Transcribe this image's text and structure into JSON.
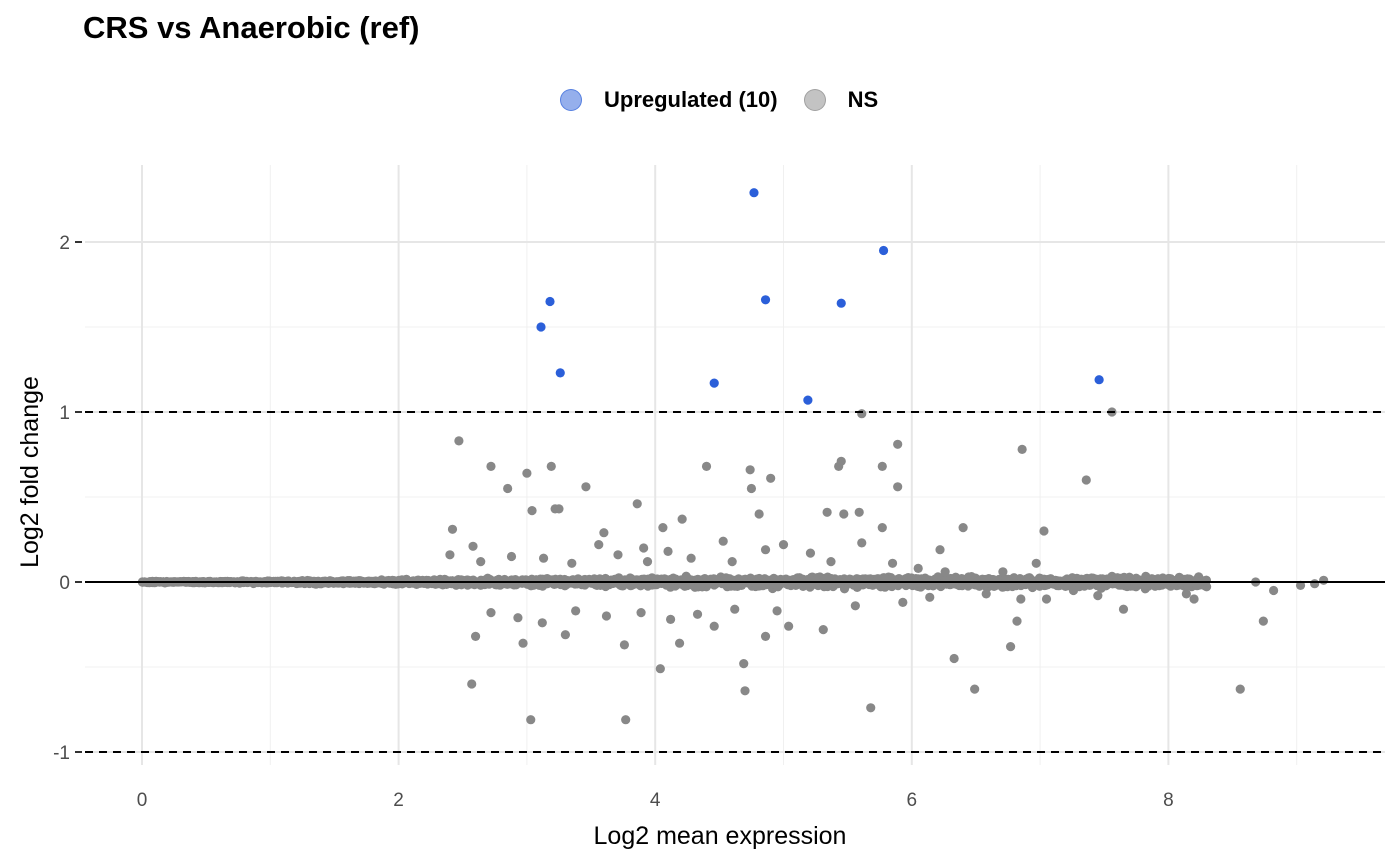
{
  "title": "CRS vs Anaerobic (ref)",
  "legend": [
    {
      "label": "Upregulated (10)",
      "color": "#2b5fd9",
      "alpha": 0.5
    },
    {
      "label": "NS",
      "color": "#888888",
      "alpha": 0.5
    }
  ],
  "chart_data": {
    "type": "scatter",
    "title": "CRS vs Anaerobic (ref)",
    "xlabel": "Log2 mean expression",
    "ylabel": "Log2 fold change",
    "xlim": [
      -0.45,
      9.55
    ],
    "ylim": [
      -1.1,
      2.45
    ],
    "x_ticks": [
      0,
      2,
      4,
      6,
      8
    ],
    "y_ticks": [
      -1,
      0,
      1,
      2
    ],
    "x_tick_labels": [
      "0",
      "2",
      "4",
      "6",
      "8"
    ],
    "y_tick_labels": [
      "-1",
      "0",
      "1",
      "2"
    ],
    "grid": true,
    "legend_position": "top",
    "reference_lines": {
      "solid": [
        0
      ],
      "dashed": [
        -1,
        1
      ]
    },
    "series": [
      {
        "name": "Upregulated (10)",
        "color": "#2b5fd9",
        "points": [
          [
            4.77,
            2.29
          ],
          [
            5.78,
            1.95
          ],
          [
            4.86,
            1.66
          ],
          [
            3.18,
            1.65
          ],
          [
            5.45,
            1.64
          ],
          [
            3.11,
            1.5
          ],
          [
            7.46,
            1.19
          ],
          [
            4.46,
            1.17
          ],
          [
            5.19,
            1.07
          ],
          [
            3.26,
            1.23
          ]
        ]
      },
      {
        "name": "NS",
        "color": "#888888",
        "points": [
          [
            5.61,
            0.99
          ],
          [
            7.56,
            1.0
          ],
          [
            2.47,
            0.83
          ],
          [
            5.89,
            0.81
          ],
          [
            6.86,
            0.78
          ],
          [
            2.72,
            0.68
          ],
          [
            3.19,
            0.68
          ],
          [
            4.4,
            0.68
          ],
          [
            5.45,
            0.71
          ],
          [
            5.77,
            0.68
          ],
          [
            5.43,
            0.68
          ],
          [
            4.74,
            0.66
          ],
          [
            3.0,
            0.64
          ],
          [
            4.9,
            0.61
          ],
          [
            7.36,
            0.6
          ],
          [
            2.85,
            0.55
          ],
          [
            3.46,
            0.56
          ],
          [
            4.75,
            0.55
          ],
          [
            5.89,
            0.56
          ],
          [
            3.86,
            0.46
          ],
          [
            3.22,
            0.43
          ],
          [
            3.25,
            0.43
          ],
          [
            3.04,
            0.42
          ],
          [
            5.34,
            0.41
          ],
          [
            5.47,
            0.4
          ],
          [
            5.59,
            0.41
          ],
          [
            4.81,
            0.4
          ],
          [
            4.21,
            0.37
          ],
          [
            4.06,
            0.32
          ],
          [
            5.77,
            0.32
          ],
          [
            2.42,
            0.31
          ],
          [
            7.03,
            0.3
          ],
          [
            6.4,
            0.32
          ],
          [
            3.6,
            0.29
          ],
          [
            4.53,
            0.24
          ],
          [
            5.0,
            0.22
          ],
          [
            5.61,
            0.23
          ],
          [
            3.56,
            0.22
          ],
          [
            6.22,
            0.19
          ],
          [
            2.58,
            0.21
          ],
          [
            3.91,
            0.2
          ],
          [
            4.1,
            0.18
          ],
          [
            4.86,
            0.19
          ],
          [
            5.21,
            0.17
          ],
          [
            6.71,
            0.06
          ],
          [
            6.97,
            0.11
          ],
          [
            2.6,
            -0.32
          ],
          [
            2.97,
            -0.36
          ],
          [
            3.3,
            -0.31
          ],
          [
            3.76,
            -0.37
          ],
          [
            4.04,
            -0.51
          ],
          [
            4.19,
            -0.36
          ],
          [
            4.46,
            -0.26
          ],
          [
            4.86,
            -0.32
          ],
          [
            5.04,
            -0.26
          ],
          [
            5.31,
            -0.28
          ],
          [
            4.69,
            -0.48
          ],
          [
            4.7,
            -0.64
          ],
          [
            5.68,
            -0.74
          ],
          [
            6.33,
            -0.45
          ],
          [
            6.49,
            -0.63
          ],
          [
            6.77,
            -0.38
          ],
          [
            6.82,
            -0.23
          ],
          [
            2.57,
            -0.6
          ],
          [
            3.03,
            -0.81
          ],
          [
            3.77,
            -0.81
          ],
          [
            8.56,
            -0.63
          ],
          [
            8.74,
            -0.23
          ],
          [
            8.82,
            -0.05
          ],
          [
            8.68,
            0.0
          ],
          [
            8.2,
            -0.1
          ],
          [
            8.14,
            -0.07
          ],
          [
            7.65,
            -0.16
          ],
          [
            7.05,
            -0.1
          ],
          [
            6.85,
            -0.1
          ],
          [
            7.45,
            -0.08
          ],
          [
            9.03,
            -0.02
          ],
          [
            9.14,
            -0.01
          ],
          [
            9.21,
            0.01
          ],
          [
            2.4,
            0.16
          ],
          [
            2.64,
            0.12
          ],
          [
            2.88,
            0.15
          ],
          [
            3.13,
            0.14
          ],
          [
            3.35,
            0.11
          ],
          [
            3.71,
            0.16
          ],
          [
            3.94,
            0.12
          ],
          [
            4.28,
            0.14
          ],
          [
            4.6,
            0.12
          ],
          [
            5.37,
            0.12
          ],
          [
            5.85,
            0.11
          ],
          [
            6.05,
            0.08
          ],
          [
            6.26,
            0.06
          ],
          [
            2.72,
            -0.18
          ],
          [
            2.93,
            -0.21
          ],
          [
            3.12,
            -0.24
          ],
          [
            3.38,
            -0.17
          ],
          [
            3.62,
            -0.2
          ],
          [
            3.89,
            -0.18
          ],
          [
            4.12,
            -0.22
          ],
          [
            4.33,
            -0.19
          ],
          [
            4.62,
            -0.16
          ],
          [
            4.95,
            -0.17
          ],
          [
            5.56,
            -0.14
          ],
          [
            5.93,
            -0.12
          ],
          [
            6.14,
            -0.09
          ],
          [
            6.58,
            -0.07
          ],
          [
            7.26,
            -0.05
          ],
          [
            7.82,
            -0.04
          ]
        ]
      }
    ],
    "ns_band": {
      "x_min": 0.0,
      "x_max": 8.3,
      "note": "dense cloud of NS points near y = 0"
    }
  }
}
